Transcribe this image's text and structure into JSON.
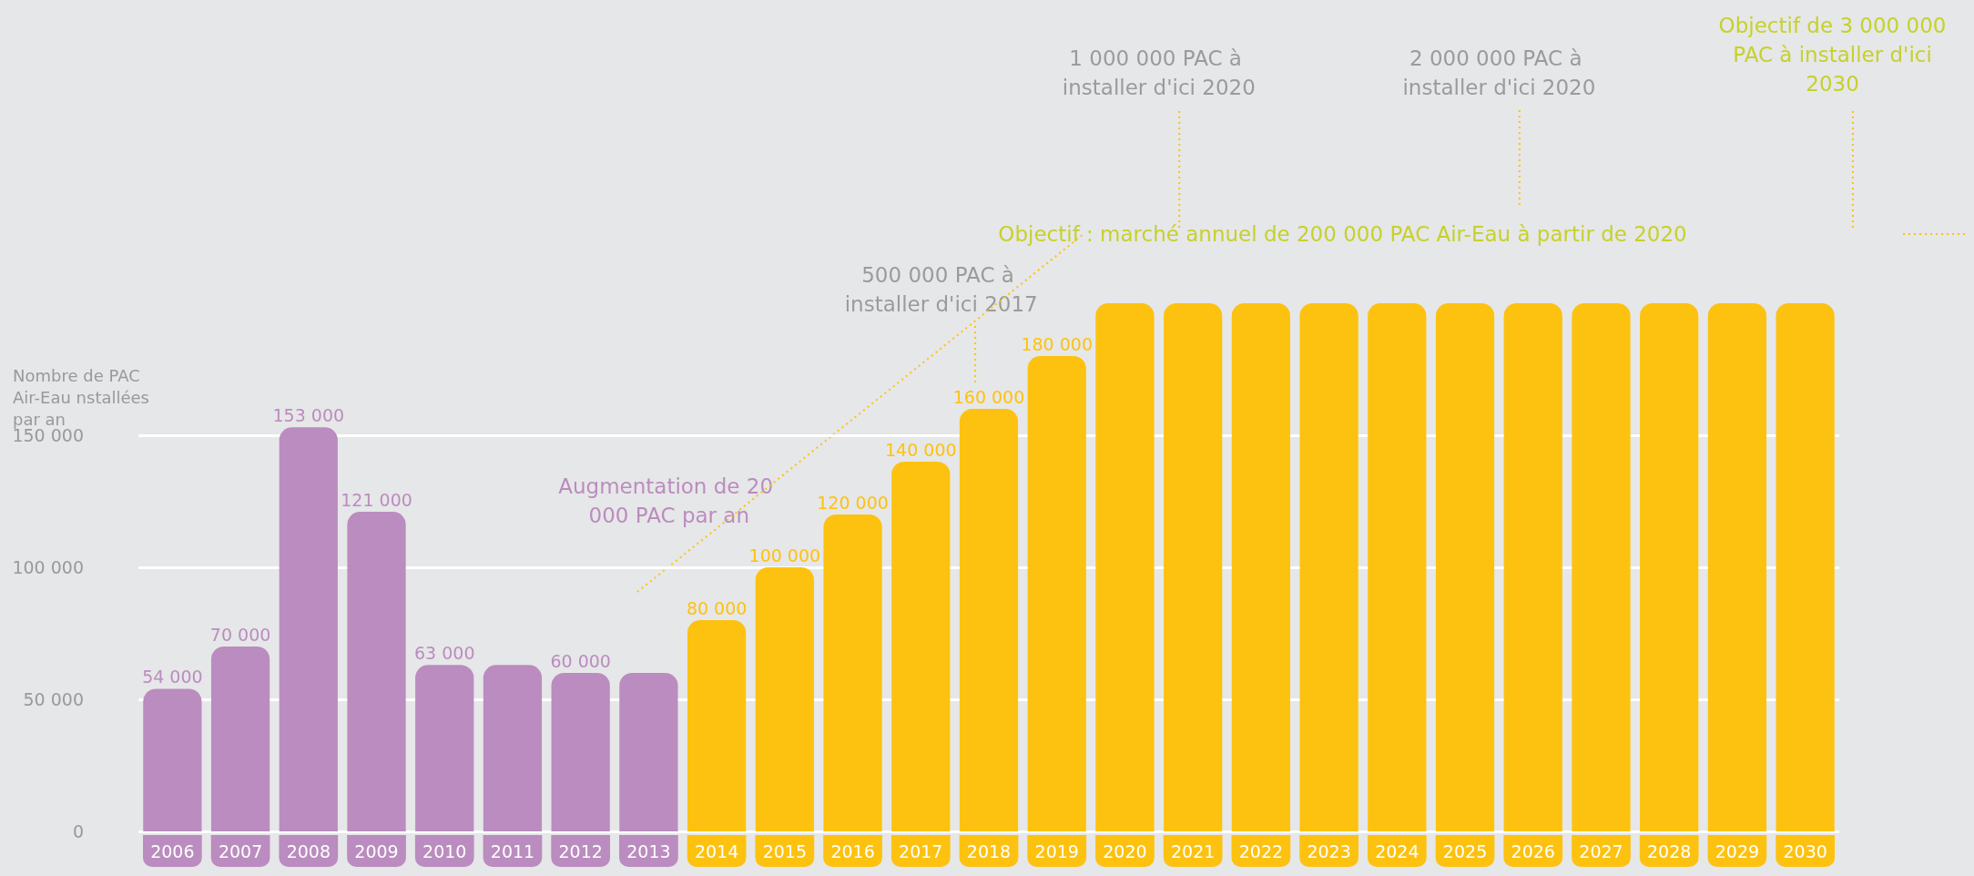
{
  "chart_data": {
    "type": "bar",
    "ylabel": "Nombre de PAC Air-Eau nstallées par an",
    "categories": [
      "2006",
      "2007",
      "2008",
      "2009",
      "2010",
      "2011",
      "2012",
      "2013",
      "2014",
      "2015",
      "2016",
      "2017",
      "2018",
      "2019",
      "2020",
      "2021",
      "2022",
      "2023",
      "2024",
      "2025",
      "2026",
      "2027",
      "2028",
      "2029",
      "2030"
    ],
    "values": [
      54000,
      70000,
      153000,
      121000,
      63000,
      63000,
      60000,
      60000,
      80000,
      100000,
      120000,
      140000,
      160000,
      180000,
      200000,
      200000,
      200000,
      200000,
      200000,
      200000,
      200000,
      200000,
      200000,
      200000,
      200000
    ],
    "value_labels": [
      "54 000",
      "70 000",
      "153 000",
      "121 000",
      "63 000",
      null,
      "60 000",
      null,
      "80 000",
      "100 000",
      "120 000",
      "140 000",
      "160 000",
      "180 000",
      null,
      null,
      null,
      null,
      null,
      null,
      null,
      null,
      null,
      null,
      null
    ],
    "colors": [
      "#bb8cbf",
      "#bb8cbf",
      "#bb8cbf",
      "#bb8cbf",
      "#bb8cbf",
      "#bb8cbf",
      "#bb8cbf",
      "#bb8cbf",
      "#fdc210",
      "#fdc210",
      "#fdc210",
      "#fdc210",
      "#fdc210",
      "#fdc210",
      "#fdc210",
      "#fdc210",
      "#fdc210",
      "#fdc210",
      "#fdc210",
      "#fdc210",
      "#fdc210",
      "#fdc210",
      "#fdc210",
      "#fdc210",
      "#fdc210"
    ],
    "ylim": [
      0,
      200000
    ],
    "yticks": [
      {
        "value": 0,
        "label": "0"
      },
      {
        "value": 50000,
        "label": "50 000"
      },
      {
        "value": 100000,
        "label": "100 000"
      },
      {
        "value": 150000,
        "label": "150 000"
      }
    ],
    "grid": "y",
    "annotations": [
      "Augmentation de 20 000 PAC par an",
      "500 000 PAC à installer d'ici 2017",
      "1 000 000 PAC à installer d'ici 2020",
      "2 000 000 PAC à installer d'ici 2020",
      "Objectif de 3 000 000 PAC à installer d'ici 2030",
      "Objectif : marché annuel de 200 000 PAC Air-Eau à partir de 2020"
    ]
  }
}
